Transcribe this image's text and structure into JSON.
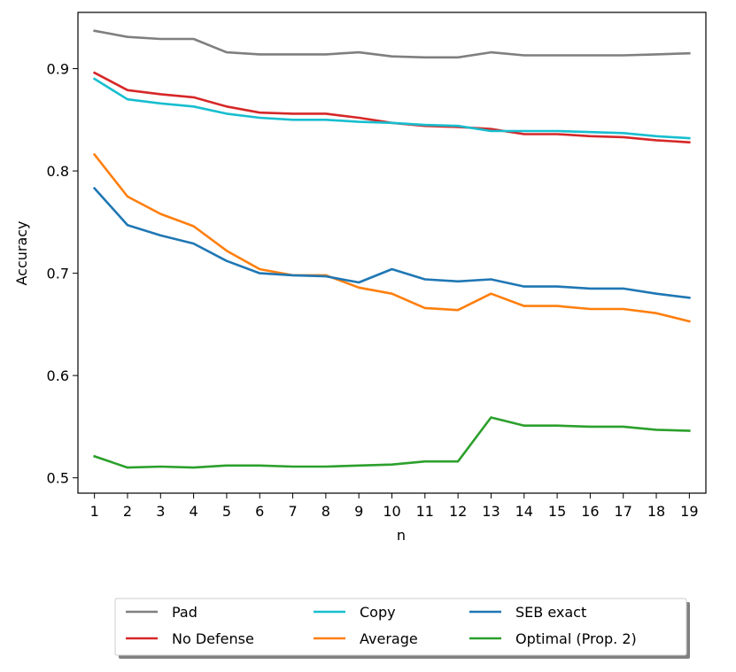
{
  "chart_data": {
    "type": "line",
    "title": "",
    "xlabel": "n",
    "ylabel": "Accuracy",
    "x": [
      1,
      2,
      3,
      4,
      5,
      6,
      7,
      8,
      9,
      10,
      11,
      12,
      13,
      14,
      15,
      16,
      17,
      18,
      19
    ],
    "xlim": [
      0.5,
      19.5
    ],
    "ylim": [
      0.485,
      0.955
    ],
    "yticks": [
      0.5,
      0.6,
      0.7,
      0.8,
      0.9
    ],
    "ytick_labels": [
      "0.5",
      "0.6",
      "0.7",
      "0.8",
      "0.9"
    ],
    "xtick_labels": [
      "1",
      "2",
      "3",
      "4",
      "5",
      "6",
      "7",
      "8",
      "9",
      "10",
      "11",
      "12",
      "13",
      "14",
      "15",
      "16",
      "17",
      "18",
      "19"
    ],
    "grid": false,
    "legend_position": "bottom-outside",
    "legend_columns": 3,
    "series": [
      {
        "name": "Pad",
        "color": "#7f7f7f",
        "values": [
          0.937,
          0.931,
          0.929,
          0.929,
          0.916,
          0.914,
          0.914,
          0.914,
          0.916,
          0.912,
          0.911,
          0.911,
          0.916,
          0.913,
          0.913,
          0.913,
          0.913,
          0.914,
          0.915
        ]
      },
      {
        "name": "No Defense",
        "color": "#d62728",
        "values": [
          0.896,
          0.879,
          0.875,
          0.872,
          0.863,
          0.857,
          0.856,
          0.856,
          0.852,
          0.847,
          0.844,
          0.843,
          0.841,
          0.836,
          0.836,
          0.834,
          0.833,
          0.83,
          0.828
        ]
      },
      {
        "name": "Copy",
        "color": "#17becf",
        "values": [
          0.89,
          0.87,
          0.866,
          0.863,
          0.856,
          0.852,
          0.85,
          0.85,
          0.848,
          0.847,
          0.845,
          0.844,
          0.839,
          0.839,
          0.839,
          0.838,
          0.837,
          0.834,
          0.832
        ]
      },
      {
        "name": "Average",
        "color": "#ff7f0e",
        "values": [
          0.816,
          0.775,
          0.758,
          0.746,
          0.722,
          0.704,
          0.698,
          0.698,
          0.686,
          0.68,
          0.666,
          0.664,
          0.68,
          0.668,
          0.668,
          0.665,
          0.665,
          0.661,
          0.653
        ]
      },
      {
        "name": "SEB exact",
        "color": "#1f77b4",
        "values": [
          0.783,
          0.747,
          0.737,
          0.729,
          0.712,
          0.7,
          0.698,
          0.697,
          0.691,
          0.704,
          0.694,
          0.692,
          0.694,
          0.687,
          0.687,
          0.685,
          0.685,
          0.68,
          0.676
        ]
      },
      {
        "name": "Optimal (Prop. 2)",
        "color": "#2ca02c",
        "values": [
          0.521,
          0.51,
          0.511,
          0.51,
          0.512,
          0.512,
          0.511,
          0.511,
          0.512,
          0.513,
          0.516,
          0.516,
          0.559,
          0.551,
          0.551,
          0.55,
          0.55,
          0.547,
          0.546
        ]
      }
    ]
  }
}
